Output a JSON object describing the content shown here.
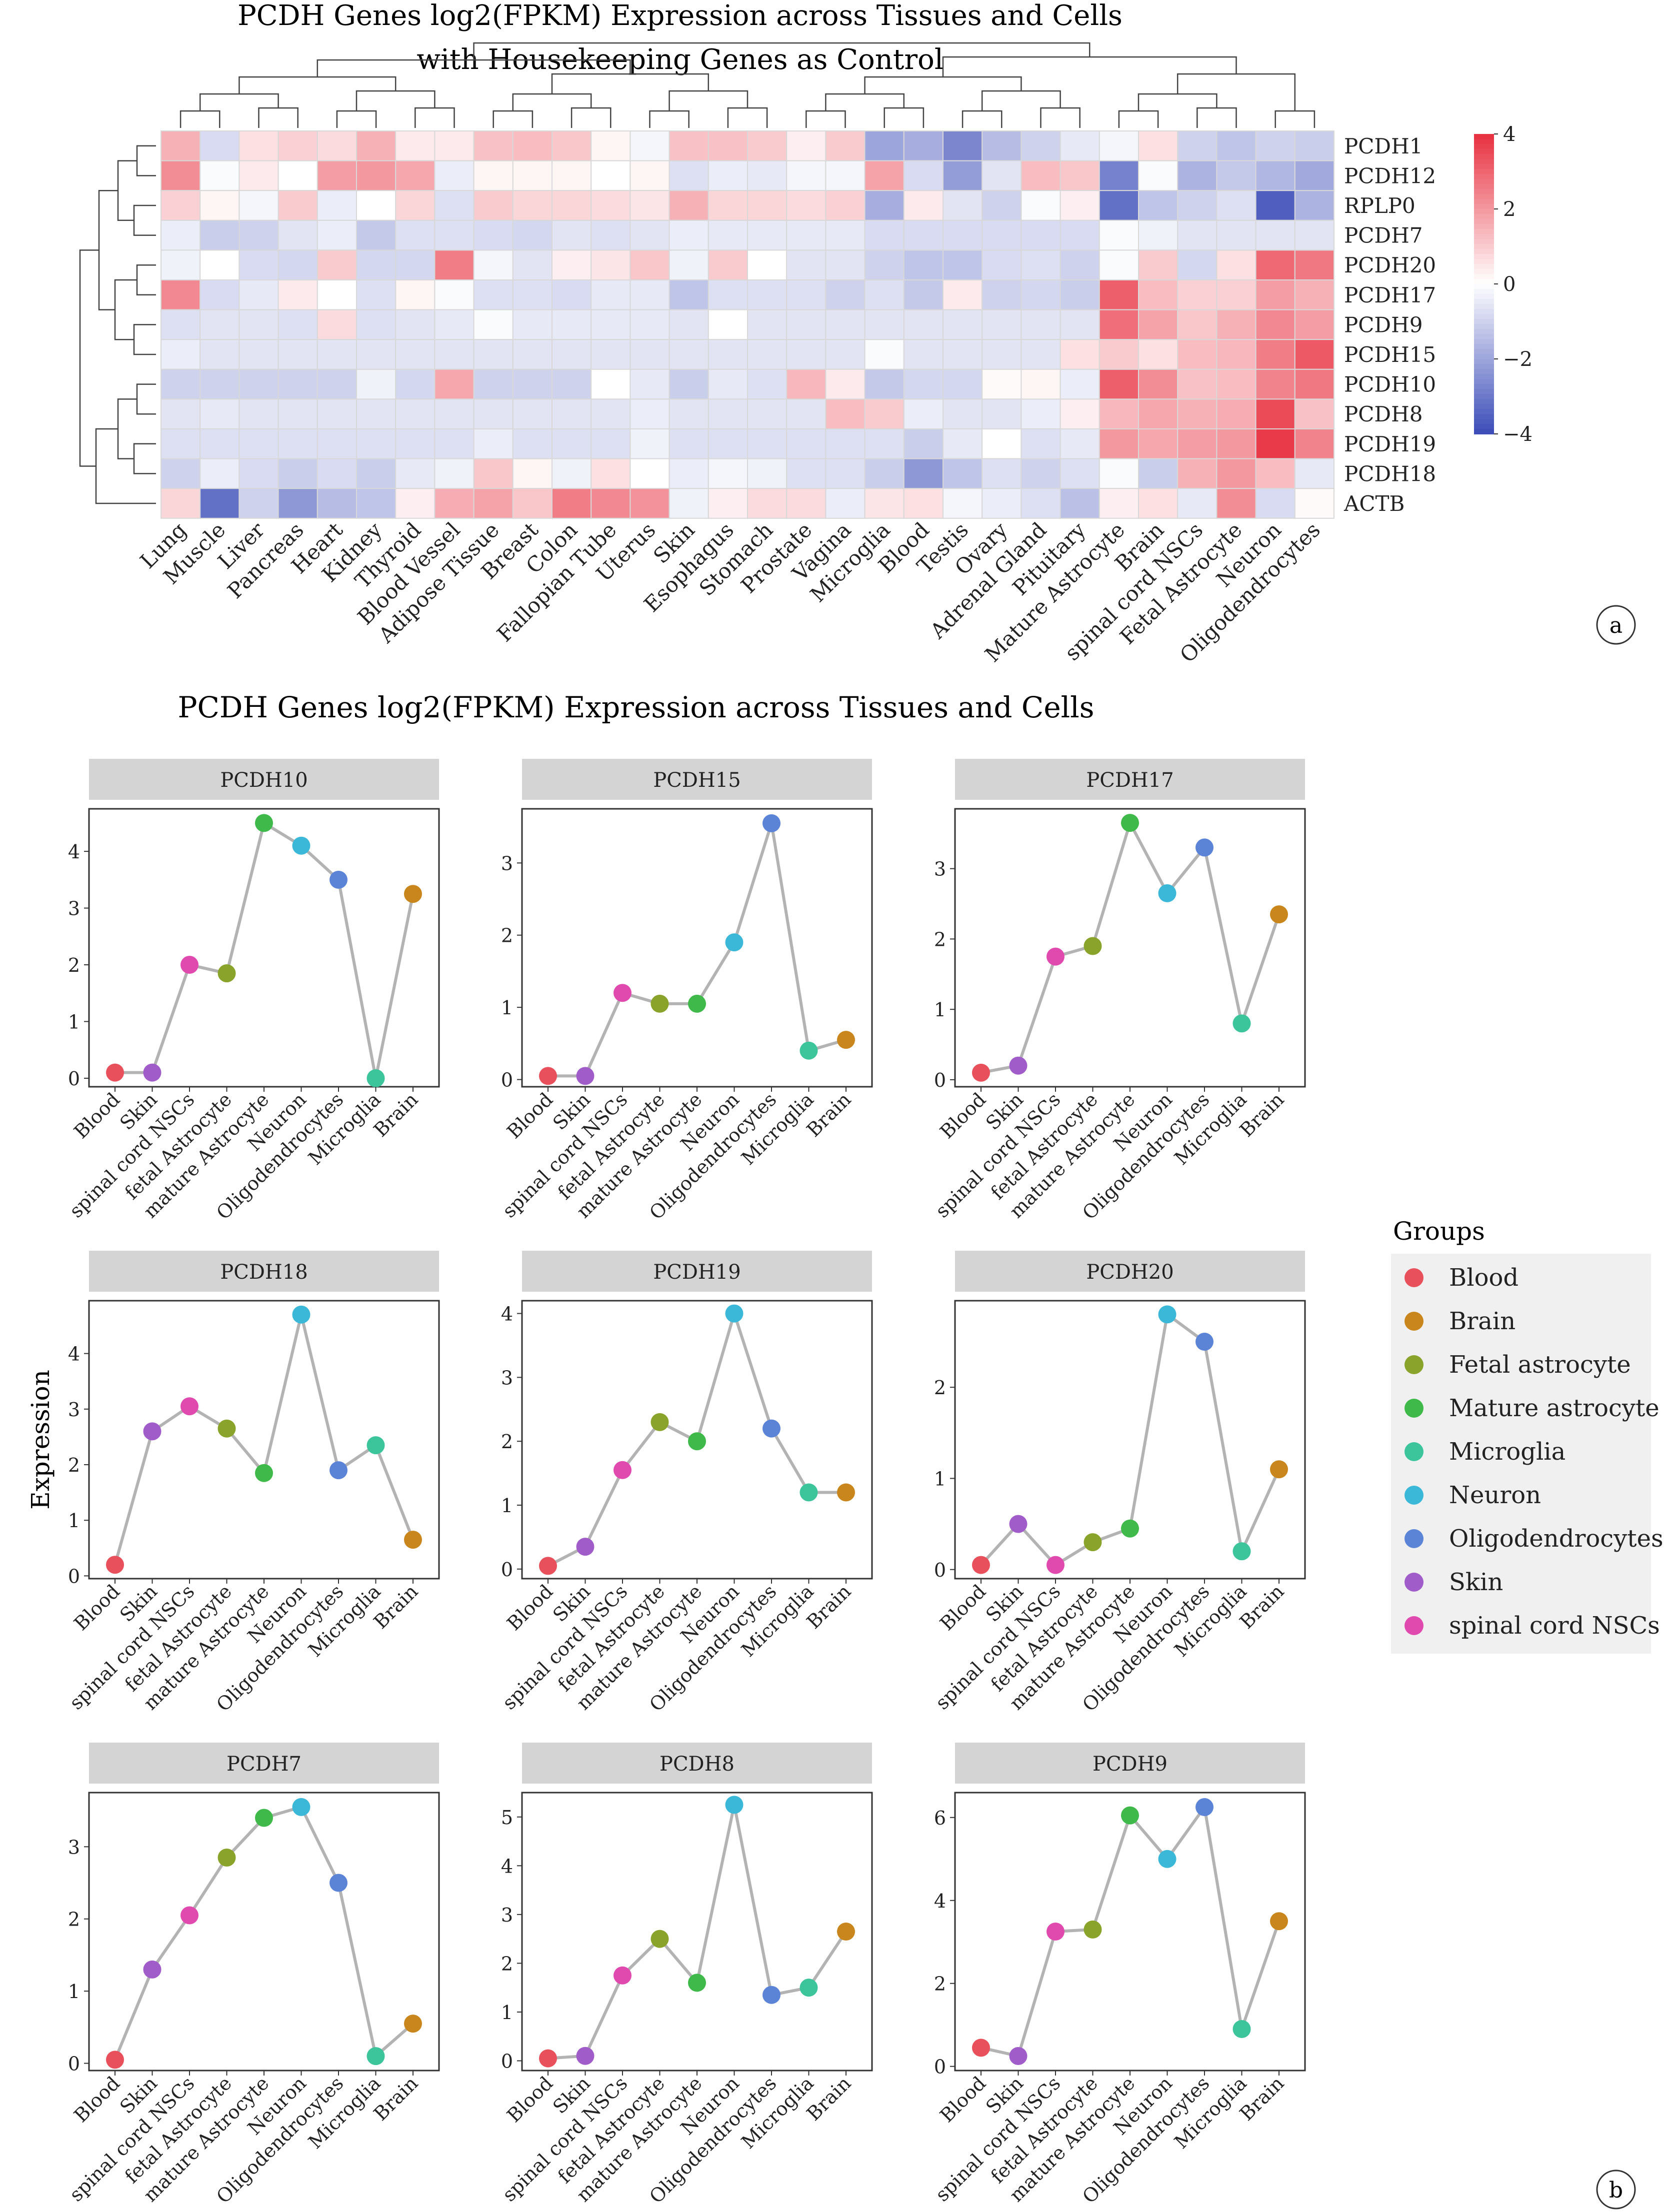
{
  "figure": {
    "panel_a_title_line1": "PCDH Genes log2(FPKM) Expression across Tissues and Cells",
    "panel_a_title_line2": "with Housekeeping Genes as Control",
    "panel_a_label": "a",
    "panel_b_title": "PCDH Genes log2(FPKM) Expression across Tissues and Cells",
    "panel_b_label": "b",
    "ylabel": "Expression",
    "legend_title": "Groups"
  },
  "chart_data": [
    {
      "type": "heatmap",
      "title": "PCDH Genes log2(FPKM) Expression across Tissues and Cells",
      "subtitle": "with Housekeeping Genes as Control",
      "columns": [
        "Lung",
        "Muscle",
        "Liver",
        "Pancreas",
        "Heart",
        "Kidney",
        "Thyroid",
        "Blood Vessel",
        "Adipose Tissue",
        "Breast",
        "Colon",
        "Fallopian Tube",
        "Uterus",
        "Skin",
        "Esophagus",
        "Stomach",
        "Prostate",
        "Vagina",
        "Microglia",
        "Blood",
        "Testis",
        "Ovary",
        "Adrenal Gland",
        "Pituitary",
        "Mature Astrocyte",
        "Brain",
        "spinal cord NSCs",
        "Fetal Astrocyte",
        "Neuron",
        "Oligodendrocytes"
      ],
      "rows": [
        "PCDH1",
        "PCDH12",
        "RPLP0",
        "PCDH7",
        "PCDH20",
        "PCDH17",
        "PCDH9",
        "PCDH15",
        "PCDH10",
        "PCDH8",
        "PCDH19",
        "PCDH18",
        "ACTB"
      ],
      "values": [
        [
          1.5,
          -0.8,
          0.6,
          0.9,
          0.7,
          1.5,
          0.4,
          0.4,
          1.2,
          1.3,
          1.1,
          0.2,
          -0.2,
          1.2,
          1.2,
          1.0,
          0.3,
          1.0,
          -2.0,
          -1.8,
          -2.7,
          -1.5,
          -1.0,
          -0.5,
          -0.2,
          0.6,
          -1.0,
          -1.3,
          -1.0,
          -1.1
        ],
        [
          2.2,
          -0.1,
          0.4,
          0.0,
          1.9,
          2.0,
          1.7,
          -0.4,
          0.2,
          0.2,
          0.2,
          0.0,
          0.2,
          -0.7,
          -0.4,
          -0.5,
          -0.2,
          -0.2,
          1.8,
          -0.8,
          -2.2,
          -0.6,
          1.3,
          1.1,
          -2.8,
          -0.1,
          -1.7,
          -1.2,
          -1.6,
          -1.9
        ],
        [
          0.9,
          0.2,
          -0.2,
          1.0,
          -0.4,
          0.0,
          0.8,
          -0.7,
          1.0,
          0.8,
          0.8,
          0.7,
          0.5,
          1.5,
          0.8,
          0.8,
          0.7,
          0.9,
          -1.8,
          0.4,
          -0.6,
          -1.0,
          -0.1,
          0.3,
          -3.2,
          -1.3,
          -1.0,
          -0.7,
          -3.6,
          -1.7
        ],
        [
          -0.4,
          -1.1,
          -1.0,
          -0.6,
          -0.4,
          -1.2,
          -0.7,
          -0.7,
          -0.8,
          -0.9,
          -0.6,
          -0.7,
          -0.6,
          -0.4,
          -0.5,
          -0.5,
          -0.5,
          -0.5,
          -0.8,
          -0.8,
          -0.8,
          -0.8,
          -0.8,
          -0.8,
          -0.1,
          -0.3,
          -0.6,
          -0.6,
          -0.6,
          -0.6
        ],
        [
          -0.3,
          0.0,
          -0.8,
          -0.9,
          1.0,
          -0.9,
          -0.9,
          2.5,
          -0.2,
          -0.6,
          0.3,
          0.5,
          1.1,
          -0.3,
          1.0,
          0.0,
          -0.6,
          -0.6,
          -1.0,
          -1.3,
          -1.3,
          -0.8,
          -0.7,
          -1.0,
          -0.1,
          1.0,
          -0.9,
          0.6,
          2.9,
          2.6
        ],
        [
          2.3,
          -0.8,
          -0.5,
          0.4,
          0.0,
          -0.7,
          0.2,
          -0.1,
          -0.7,
          -0.7,
          -0.8,
          -0.5,
          -0.5,
          -1.3,
          -0.7,
          -0.7,
          -0.7,
          -1.0,
          -0.7,
          -1.2,
          0.4,
          -1.0,
          -0.9,
          -1.1,
          3.1,
          1.3,
          0.9,
          0.9,
          1.9,
          1.5
        ],
        [
          -0.7,
          -0.6,
          -0.6,
          -0.7,
          0.7,
          -0.7,
          -0.6,
          -0.5,
          -0.1,
          -0.5,
          -0.5,
          -0.5,
          -0.5,
          -0.6,
          0.0,
          -0.6,
          -0.6,
          -0.6,
          -0.6,
          -0.6,
          -0.6,
          -0.6,
          -0.6,
          -0.6,
          2.8,
          1.8,
          1.1,
          1.5,
          2.3,
          1.9
        ],
        [
          -0.4,
          -0.6,
          -0.6,
          -0.6,
          -0.6,
          -0.6,
          -0.6,
          -0.6,
          -0.6,
          -0.6,
          -0.6,
          -0.6,
          -0.6,
          -0.6,
          -0.6,
          -0.6,
          -0.6,
          -0.6,
          -0.1,
          -0.6,
          -0.6,
          -0.6,
          -0.6,
          0.6,
          1.0,
          0.6,
          1.3,
          1.4,
          2.5,
          3.2
        ],
        [
          -1.0,
          -1.0,
          -1.0,
          -1.0,
          -1.0,
          -0.3,
          -0.9,
          1.7,
          -1.0,
          -1.0,
          -1.0,
          0.0,
          -0.5,
          -1.1,
          -0.5,
          -0.7,
          1.4,
          0.4,
          -1.2,
          -0.9,
          -0.9,
          0.1,
          0.2,
          -0.4,
          3.1,
          2.2,
          1.2,
          1.3,
          2.4,
          2.6
        ],
        [
          -0.6,
          -0.5,
          -0.6,
          -0.6,
          -0.6,
          -0.6,
          -0.6,
          -0.6,
          -0.6,
          -0.6,
          -0.6,
          -0.6,
          -0.4,
          -0.6,
          -0.6,
          -0.6,
          -0.6,
          1.3,
          1.0,
          -0.4,
          -0.6,
          -0.6,
          -0.4,
          0.3,
          1.4,
          1.7,
          1.5,
          1.6,
          3.5,
          1.2
        ],
        [
          -0.7,
          -0.7,
          -0.7,
          -0.7,
          -0.7,
          -0.7,
          -0.7,
          -0.7,
          -0.4,
          -0.7,
          -0.7,
          -0.7,
          -0.3,
          -0.7,
          -0.7,
          -0.7,
          -0.7,
          -0.7,
          -0.7,
          -1.1,
          -0.5,
          0.0,
          -0.7,
          -0.5,
          2.0,
          1.7,
          1.9,
          2.0,
          3.8,
          2.4
        ],
        [
          -1.0,
          -0.4,
          -0.8,
          -1.1,
          -0.8,
          -1.1,
          -0.5,
          -0.3,
          1.1,
          0.2,
          -0.3,
          0.6,
          0.0,
          -0.4,
          -0.2,
          -0.3,
          -0.7,
          -0.7,
          -1.1,
          -2.3,
          -1.3,
          -0.7,
          -1.0,
          -0.7,
          -0.1,
          -1.1,
          1.5,
          2.0,
          1.3,
          -0.5
        ],
        [
          0.8,
          -3.2,
          -1.0,
          -2.3,
          -1.5,
          -1.3,
          0.3,
          1.6,
          1.8,
          1.1,
          2.5,
          2.3,
          2.1,
          -0.3,
          0.3,
          0.7,
          0.7,
          -0.4,
          0.5,
          0.6,
          -0.2,
          -0.4,
          -0.7,
          -1.4,
          0.3,
          0.6,
          -0.5,
          2.2,
          -0.8,
          0.1
        ]
      ],
      "color_scale": {
        "min": -4,
        "max": 4,
        "low": "#3b4cb8",
        "mid": "#ffffff",
        "high": "#e8303f",
        "ticks": [
          "4",
          "2",
          "0",
          "−2",
          "−4"
        ],
        "tick_values": [
          4,
          2,
          0,
          -2,
          -4
        ]
      }
    },
    {
      "type": "line",
      "title": "PCDH Genes log2(FPKM) Expression across Tissues and Cells",
      "ylabel": "Expression",
      "categories": [
        "Blood",
        "Skin",
        "spinal cord NSCs",
        "fetal Astrocyte",
        "mature Astrocyte",
        "Neuron",
        "Oligodendrocytes",
        "Microglia",
        "Brain"
      ],
      "point_groups": [
        "Blood",
        "Skin",
        "spinal cord NSCs",
        "Fetal astrocyte",
        "Mature astrocyte",
        "Neuron",
        "Oligodendrocytes",
        "Microglia",
        "Brain"
      ],
      "groups": [
        {
          "name": "Blood",
          "color": "#e8505b"
        },
        {
          "name": "Brain",
          "color": "#c8861c"
        },
        {
          "name": "Fetal astrocyte",
          "color": "#8aa32a"
        },
        {
          "name": "Mature astrocyte",
          "color": "#3fba4a"
        },
        {
          "name": "Microglia",
          "color": "#3cc49a"
        },
        {
          "name": "Neuron",
          "color": "#3bb8d8"
        },
        {
          "name": "Oligodendrocytes",
          "color": "#5c84d6"
        },
        {
          "name": "Skin",
          "color": "#a05cc8"
        },
        {
          "name": "spinal cord NSCs",
          "color": "#e04aae"
        }
      ],
      "legend_position": "right",
      "series": [
        {
          "name": "PCDH10",
          "values": [
            0.1,
            0.1,
            2.0,
            1.85,
            4.5,
            4.1,
            3.5,
            0.0,
            3.25
          ],
          "ylim": [
            -0.15,
            4.75
          ],
          "yticks": [
            0,
            1,
            2,
            3,
            4
          ]
        },
        {
          "name": "PCDH15",
          "values": [
            0.05,
            0.05,
            1.2,
            1.05,
            1.05,
            1.9,
            3.55,
            0.4,
            0.55
          ],
          "ylim": [
            -0.1,
            3.75
          ],
          "yticks": [
            0,
            1,
            2,
            3
          ]
        },
        {
          "name": "PCDH17",
          "values": [
            0.1,
            0.2,
            1.75,
            1.9,
            3.65,
            2.65,
            3.3,
            0.8,
            2.35
          ],
          "ylim": [
            -0.1,
            3.85
          ],
          "yticks": [
            0,
            1,
            2,
            3
          ]
        },
        {
          "name": "PCDH18",
          "values": [
            0.2,
            2.6,
            3.05,
            2.65,
            1.85,
            4.7,
            1.9,
            2.35,
            0.65
          ],
          "ylim": [
            -0.05,
            4.95
          ],
          "yticks": [
            0,
            1,
            2,
            3,
            4
          ]
        },
        {
          "name": "PCDH19",
          "values": [
            0.05,
            0.35,
            1.55,
            2.3,
            2.0,
            4.0,
            2.2,
            1.2,
            1.2
          ],
          "ylim": [
            -0.15,
            4.2
          ],
          "yticks": [
            0,
            1,
            2,
            3,
            4
          ]
        },
        {
          "name": "PCDH20",
          "values": [
            0.05,
            0.5,
            0.05,
            0.3,
            0.45,
            2.8,
            2.5,
            0.2,
            1.1
          ],
          "ylim": [
            -0.1,
            2.95
          ],
          "yticks": [
            0,
            1,
            2
          ]
        },
        {
          "name": "PCDH7",
          "values": [
            0.05,
            1.3,
            2.05,
            2.85,
            3.4,
            3.55,
            2.5,
            0.1,
            0.55
          ],
          "ylim": [
            -0.1,
            3.75
          ],
          "yticks": [
            0,
            1,
            2,
            3
          ]
        },
        {
          "name": "PCDH8",
          "values": [
            0.05,
            0.1,
            1.75,
            2.5,
            1.6,
            5.25,
            1.35,
            1.5,
            2.65
          ],
          "ylim": [
            -0.2,
            5.5
          ],
          "yticks": [
            0,
            1,
            2,
            3,
            4,
            5
          ]
        },
        {
          "name": "PCDH9",
          "values": [
            0.45,
            0.25,
            3.25,
            3.3,
            6.05,
            5.0,
            6.25,
            0.9,
            3.5
          ],
          "ylim": [
            -0.1,
            6.6
          ],
          "yticks": [
            0,
            2,
            4,
            6
          ]
        }
      ]
    }
  ]
}
